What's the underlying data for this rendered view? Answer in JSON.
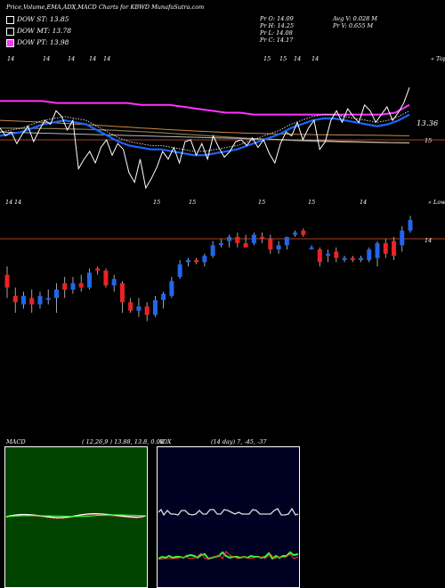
{
  "header": {
    "title": "Price,Volume,EMA,ADX,MACD Charts for KBWD MunafaSutra.com"
  },
  "legend": [
    {
      "label": "DOW ST: 13.85",
      "color": "#ffffff"
    },
    {
      "label": "DOW MT: 13.78",
      "color": "#ffffff"
    },
    {
      "label": "DOW PT: 13.98",
      "color": "#ff33ff"
    }
  ],
  "ohlc": {
    "open": "Pr  O: 14.09",
    "high": "Pr  H: 14.25",
    "low": "Pr  L: 14.08",
    "close": "Pr  C: 14.17"
  },
  "stats": {
    "avg_volume": "Avg V: 0.028 M",
    "volume": "Pr  V: 0.655 M"
  },
  "top_panel": {
    "corner_label": "« Tops",
    "price_label": "13.36",
    "level_label": "15",
    "axis_marks": [
      {
        "text": "14",
        "x": 8
      },
      {
        "text": "14",
        "x": 48
      },
      {
        "text": "14",
        "x": 76
      },
      {
        "text": "14",
        "x": 100
      },
      {
        "text": "14",
        "x": 116
      },
      {
        "text": "15",
        "x": 296
      },
      {
        "text": "15",
        "x": 314
      },
      {
        "text": "14",
        "x": 330
      },
      {
        "text": "14",
        "x": 350
      }
    ]
  },
  "bottom_panel": {
    "corner_label": "« Lows",
    "level_label": "14",
    "axis_marks": [
      {
        "text": "14",
        "x": 6
      },
      {
        "text": "14",
        "x": 16
      },
      {
        "text": "15",
        "x": 172
      },
      {
        "text": "15",
        "x": 212
      },
      {
        "text": "15",
        "x": 290
      },
      {
        "text": "15",
        "x": 346
      },
      {
        "text": "14",
        "x": 404
      }
    ]
  },
  "macd_panel": {
    "label": "MACD",
    "params": "( 12,26,9 ) 13.88, 13.8, 0.08"
  },
  "adx_panel": {
    "label": "ADX",
    "params": "(14  day) 7, -45, -37"
  },
  "colors": {
    "up_candle": "#2266ee",
    "down_candle": "#ee2222",
    "ema_fast": "#1a66ff",
    "pt_line": "#ff33ff",
    "level_line": "#aa4422",
    "macd_bg": "#004400",
    "adx_bg": "#000022"
  },
  "chart_data": {
    "type": "candlestick",
    "x_axis": "session index (oldest to newest)",
    "candles": [
      {
        "o": 14.06,
        "h": 14.1,
        "l": 13.95,
        "c": 14.0
      },
      {
        "o": 13.96,
        "h": 14.0,
        "l": 13.88,
        "c": 13.93
      },
      {
        "o": 13.92,
        "h": 13.98,
        "l": 13.9,
        "c": 13.96
      },
      {
        "o": 13.95,
        "h": 13.99,
        "l": 13.88,
        "c": 13.92
      },
      {
        "o": 13.92,
        "h": 13.98,
        "l": 13.9,
        "c": 13.96
      },
      {
        "o": 13.95,
        "h": 13.99,
        "l": 13.92,
        "c": 13.95
      },
      {
        "o": 13.95,
        "h": 14.02,
        "l": 13.88,
        "c": 13.99
      },
      {
        "o": 14.02,
        "h": 14.05,
        "l": 13.95,
        "c": 13.99
      },
      {
        "o": 13.99,
        "h": 14.05,
        "l": 13.97,
        "c": 14.02
      },
      {
        "o": 14.02,
        "h": 14.06,
        "l": 13.98,
        "c": 14.0
      },
      {
        "o": 14.0,
        "h": 14.09,
        "l": 13.99,
        "c": 14.07
      },
      {
        "o": 14.09,
        "h": 14.1,
        "l": 14.06,
        "c": 14.08
      },
      {
        "o": 14.08,
        "h": 14.09,
        "l": 14.0,
        "c": 14.01
      },
      {
        "o": 14.01,
        "h": 14.06,
        "l": 13.98,
        "c": 14.04
      },
      {
        "o": 14.02,
        "h": 14.03,
        "l": 13.88,
        "c": 13.93
      },
      {
        "o": 13.93,
        "h": 13.95,
        "l": 13.88,
        "c": 13.89
      },
      {
        "o": 13.89,
        "h": 13.95,
        "l": 13.86,
        "c": 13.91
      },
      {
        "o": 13.91,
        "h": 13.93,
        "l": 13.84,
        "c": 13.87
      },
      {
        "o": 13.87,
        "h": 13.96,
        "l": 13.86,
        "c": 13.94
      },
      {
        "o": 13.94,
        "h": 13.98,
        "l": 13.9,
        "c": 13.97
      },
      {
        "o": 13.96,
        "h": 14.05,
        "l": 13.95,
        "c": 14.03
      },
      {
        "o": 14.05,
        "h": 14.13,
        "l": 14.04,
        "c": 14.11
      },
      {
        "o": 14.12,
        "h": 14.14,
        "l": 14.1,
        "c": 14.13
      },
      {
        "o": 14.13,
        "h": 14.14,
        "l": 14.11,
        "c": 14.12
      },
      {
        "o": 14.12,
        "h": 14.16,
        "l": 14.1,
        "c": 14.15
      },
      {
        "o": 14.15,
        "h": 14.22,
        "l": 14.14,
        "c": 14.2
      },
      {
        "o": 14.21,
        "h": 14.23,
        "l": 14.19,
        "c": 14.21
      },
      {
        "o": 14.22,
        "h": 14.25,
        "l": 14.19,
        "c": 14.24
      },
      {
        "o": 14.24,
        "h": 14.26,
        "l": 14.19,
        "c": 14.21
      },
      {
        "o": 14.21,
        "h": 14.25,
        "l": 14.19,
        "c": 14.19
      },
      {
        "o": 14.21,
        "h": 14.26,
        "l": 14.2,
        "c": 14.25
      },
      {
        "o": 14.24,
        "h": 14.26,
        "l": 14.21,
        "c": 14.23
      },
      {
        "o": 14.23,
        "h": 14.25,
        "l": 14.16,
        "c": 14.18
      },
      {
        "o": 14.18,
        "h": 14.22,
        "l": 14.16,
        "c": 14.2
      },
      {
        "o": 14.2,
        "h": 14.24,
        "l": 14.18,
        "c": 14.24
      },
      {
        "o": 14.25,
        "h": 14.27,
        "l": 14.24,
        "c": 14.26
      },
      {
        "o": 14.27,
        "h": 14.28,
        "l": 14.24,
        "c": 14.25
      },
      {
        "o": 14.19,
        "h": 14.2,
        "l": 14.18,
        "c": 14.19
      },
      {
        "o": 14.18,
        "h": 14.19,
        "l": 14.1,
        "c": 14.12
      },
      {
        "o": 14.15,
        "h": 14.18,
        "l": 14.12,
        "c": 14.16
      },
      {
        "o": 14.17,
        "h": 14.19,
        "l": 14.12,
        "c": 14.14
      },
      {
        "o": 14.13,
        "h": 14.15,
        "l": 14.12,
        "c": 14.14
      },
      {
        "o": 14.14,
        "h": 14.15,
        "l": 14.12,
        "c": 14.13
      },
      {
        "o": 14.13,
        "h": 14.15,
        "l": 14.12,
        "c": 14.14
      },
      {
        "o": 14.13,
        "h": 14.19,
        "l": 14.12,
        "c": 14.18
      },
      {
        "o": 14.14,
        "h": 14.22,
        "l": 14.1,
        "c": 14.21
      },
      {
        "o": 14.21,
        "h": 14.23,
        "l": 14.14,
        "c": 14.16
      },
      {
        "o": 14.22,
        "h": 14.24,
        "l": 14.13,
        "c": 14.15
      },
      {
        "o": 14.2,
        "h": 14.29,
        "l": 14.17,
        "c": 14.27
      },
      {
        "o": 14.27,
        "h": 14.34,
        "l": 14.26,
        "c": 14.32
      }
    ],
    "price_line": [
      14.06,
      14.02,
      14.04,
      13.98,
      14.03,
      14.07,
      13.99,
      14.05,
      14.1,
      14.08,
      14.15,
      14.12,
      14.05,
      14.1,
      13.85,
      13.9,
      13.94,
      13.88,
      13.96,
      14.0,
      13.92,
      13.98,
      13.95,
      13.83,
      13.78,
      13.9,
      13.75,
      13.8,
      13.86,
      13.94,
      13.9,
      13.96,
      13.88,
      13.99,
      14.0,
      13.92,
      13.98,
      13.9,
      14.02,
      13.96,
      13.91,
      13.94,
      13.99,
      14.0,
      13.97,
      14.01,
      13.96,
      14.0,
      13.93,
      13.88,
      13.98,
      14.04,
      14.02,
      14.09,
      14.0,
      14.06,
      14.1,
      13.95,
      13.99,
      14.1,
      14.15,
      14.09,
      14.16,
      14.12,
      14.09,
      14.18,
      14.15,
      14.09,
      14.13,
      14.17,
      14.1,
      14.14,
      14.19,
      14.27
    ],
    "ema_fast": [
      14.02,
      14.03,
      14.04,
      14.06,
      14.08,
      14.09,
      14.1,
      14.09,
      14.08,
      14.05,
      14.02,
      13.99,
      13.97,
      13.96,
      13.95,
      13.95,
      13.94,
      13.93,
      13.92,
      13.92,
      13.93,
      13.94,
      13.95,
      13.97,
      13.99,
      14.01,
      14.03,
      14.06,
      14.08,
      14.1,
      14.11,
      14.11,
      14.1,
      14.09,
      14.08,
      14.07,
      14.08,
      14.1,
      14.13
    ],
    "pt_line": [
      14.2,
      14.2,
      14.2,
      14.2,
      14.19,
      14.19,
      14.19,
      14.19,
      14.19,
      14.19,
      14.18,
      14.18,
      14.18,
      14.17,
      14.16,
      14.15,
      14.14,
      14.14,
      14.13,
      14.13,
      14.13,
      14.13,
      14.13,
      14.13,
      14.13,
      14.13,
      14.13,
      14.13,
      14.14,
      14.18
    ]
  }
}
